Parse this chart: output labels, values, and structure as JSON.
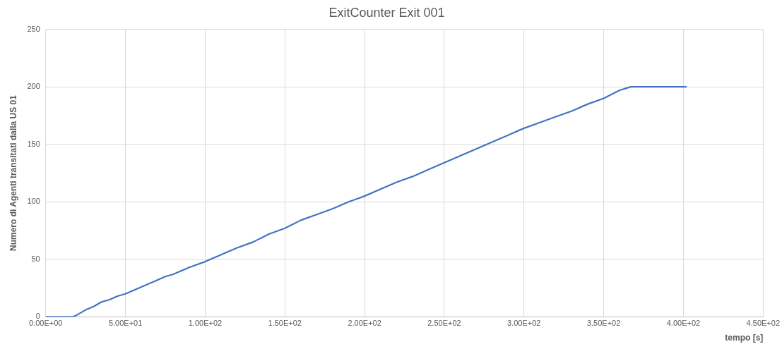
{
  "chart_data": {
    "type": "line",
    "title": "ExitCounter Exit 001",
    "xlabel": "tempo [s]",
    "ylabel": "Numero di Agenti transitati dalla US 01",
    "x": [
      0,
      17,
      20,
      25,
      30,
      35,
      40,
      45,
      50,
      60,
      70,
      75,
      80,
      90,
      100,
      110,
      120,
      130,
      140,
      150,
      160,
      170,
      180,
      190,
      200,
      210,
      220,
      230,
      240,
      250,
      260,
      270,
      280,
      290,
      300,
      310,
      320,
      330,
      340,
      350,
      360,
      367,
      402
    ],
    "series": [
      {
        "color": "#4472c4",
        "values": [
          0,
          0,
          2,
          6,
          9,
          13,
          15,
          18,
          20,
          26,
          32,
          35,
          37,
          43,
          48,
          54,
          60,
          65,
          72,
          77,
          84,
          89,
          94,
          100,
          105,
          111,
          117,
          122,
          128,
          134,
          140,
          146,
          152,
          158,
          164,
          169,
          174,
          179,
          185,
          190,
          197,
          200,
          200
        ]
      }
    ],
    "xlim": [
      0,
      450
    ],
    "xticks": [
      {
        "value": 0,
        "label": "0.00E+00"
      },
      {
        "value": 50,
        "label": "5.00E+01"
      },
      {
        "value": 100,
        "label": "1.00E+02"
      },
      {
        "value": 150,
        "label": "1.50E+02"
      },
      {
        "value": 200,
        "label": "2.00E+02"
      },
      {
        "value": 250,
        "label": "2.50E+02"
      },
      {
        "value": 300,
        "label": "3.00E+02"
      },
      {
        "value": 350,
        "label": "3.50E+02"
      },
      {
        "value": 400,
        "label": "4.00E+02"
      },
      {
        "value": 450,
        "label": "4.50E+02"
      }
    ],
    "ylim": [
      0,
      250
    ],
    "yticks": [
      0,
      50,
      100,
      150,
      200,
      250
    ],
    "grid": true,
    "legend": false,
    "marker": "none",
    "line_style": "solid"
  }
}
